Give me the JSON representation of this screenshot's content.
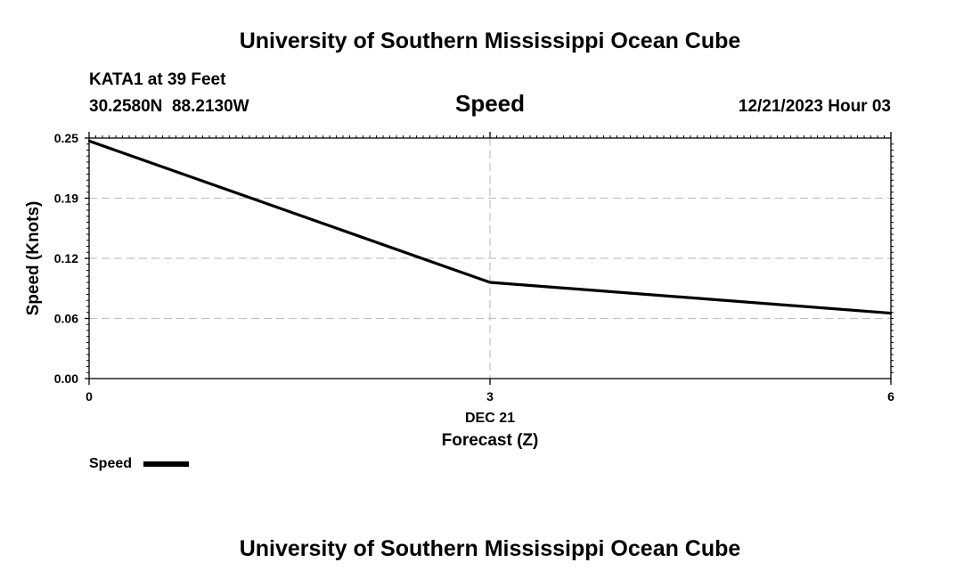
{
  "header": {
    "title": "University of Southern Mississippi Ocean Cube",
    "station": "KATA1 at 39 Feet",
    "coordinates": "30.2580N  88.2130W",
    "variable": "Speed",
    "datetime": "12/21/2023 Hour 03"
  },
  "footer": {
    "title": "University of Southern Mississippi Ocean Cube"
  },
  "legend": {
    "label": "Speed"
  },
  "chart_data": {
    "type": "line",
    "title": "Speed",
    "xlabel": "Forecast (Z)",
    "ylabel": "Speed (Knots)",
    "x_date_label": "DEC 21",
    "xlim": [
      0,
      6
    ],
    "ylim": [
      0,
      0.25
    ],
    "x_ticks": [
      0,
      3,
      6
    ],
    "x_tick_labels": [
      "0",
      "3",
      "6"
    ],
    "y_ticks": [
      0,
      0.0625,
      0.125,
      0.1875,
      0.25
    ],
    "y_tick_labels": [
      "0.00",
      "0.06",
      "0.12",
      "0.19",
      "0.25"
    ],
    "grid": true,
    "series": [
      {
        "name": "Speed",
        "x": [
          0,
          3,
          6
        ],
        "values": [
          0.247,
          0.1,
          0.068
        ],
        "color": "#000000"
      }
    ]
  }
}
